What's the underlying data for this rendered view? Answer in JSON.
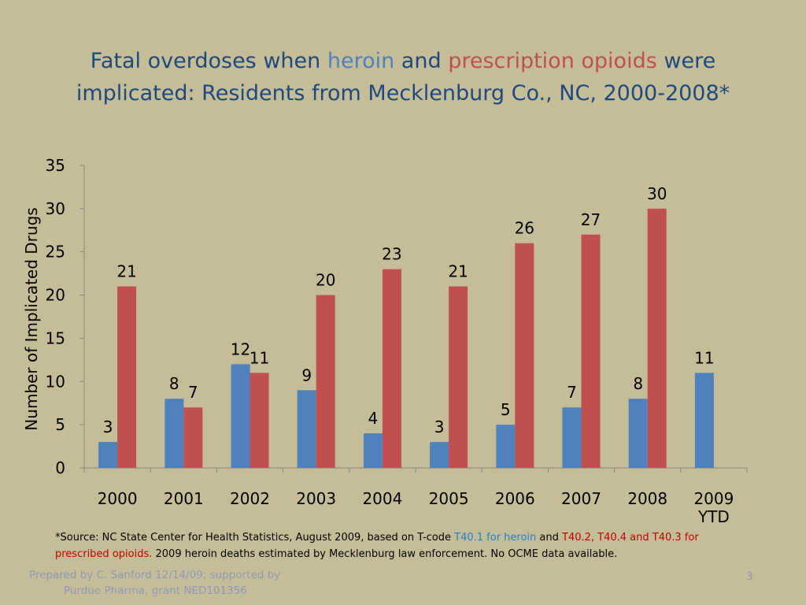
{
  "slide": {
    "title": {
      "part1": "Fatal overdoses when ",
      "heroin": "heroin",
      "part2": " and ",
      "rx": "prescription opioids",
      "part3": " were",
      "line2": "implicated:  Residents from Mecklenburg Co., NC, 2000-2008*"
    },
    "footnote": {
      "a": "*Source: NC State Center for Health Statistics, August 2009, based on T-code ",
      "heroin_code": "T40.1 for heroin",
      "and": " and ",
      "rx_codes": "T40.2, T40.4 and T40.3 for prescribed opioids.",
      "b": "  2009 heroin deaths estimated by Mecklenburg law enforcement. No OCME data available."
    },
    "credit": {
      "line1": "Prepared by C. Sanford 12/14/09; supported by",
      "line2": "Purdue Pharma, grant NED101356"
    },
    "page_number": "3"
  },
  "colors": {
    "heroin": "#4f81bd",
    "prescription_opioids": "#c0504d",
    "title": "#1f497d",
    "background": "#c5bd98"
  },
  "chart_data": {
    "type": "bar",
    "ylabel": "Number of Implicated Drugs",
    "xlabel": "",
    "ylim": [
      0,
      35
    ],
    "yticks": [
      0,
      5,
      10,
      15,
      20,
      25,
      30,
      35
    ],
    "grid": false,
    "legend": "none",
    "categories": [
      "2000",
      "2001",
      "2002",
      "2003",
      "2004",
      "2005",
      "2006",
      "2007",
      "2008",
      "2009 YTD"
    ],
    "series": [
      {
        "values": [
          3,
          8,
          12,
          9,
          4,
          3,
          5,
          7,
          8,
          11
        ]
      },
      {
        "values": [
          21,
          7,
          11,
          20,
          23,
          21,
          26,
          27,
          30,
          null
        ]
      }
    ]
  }
}
